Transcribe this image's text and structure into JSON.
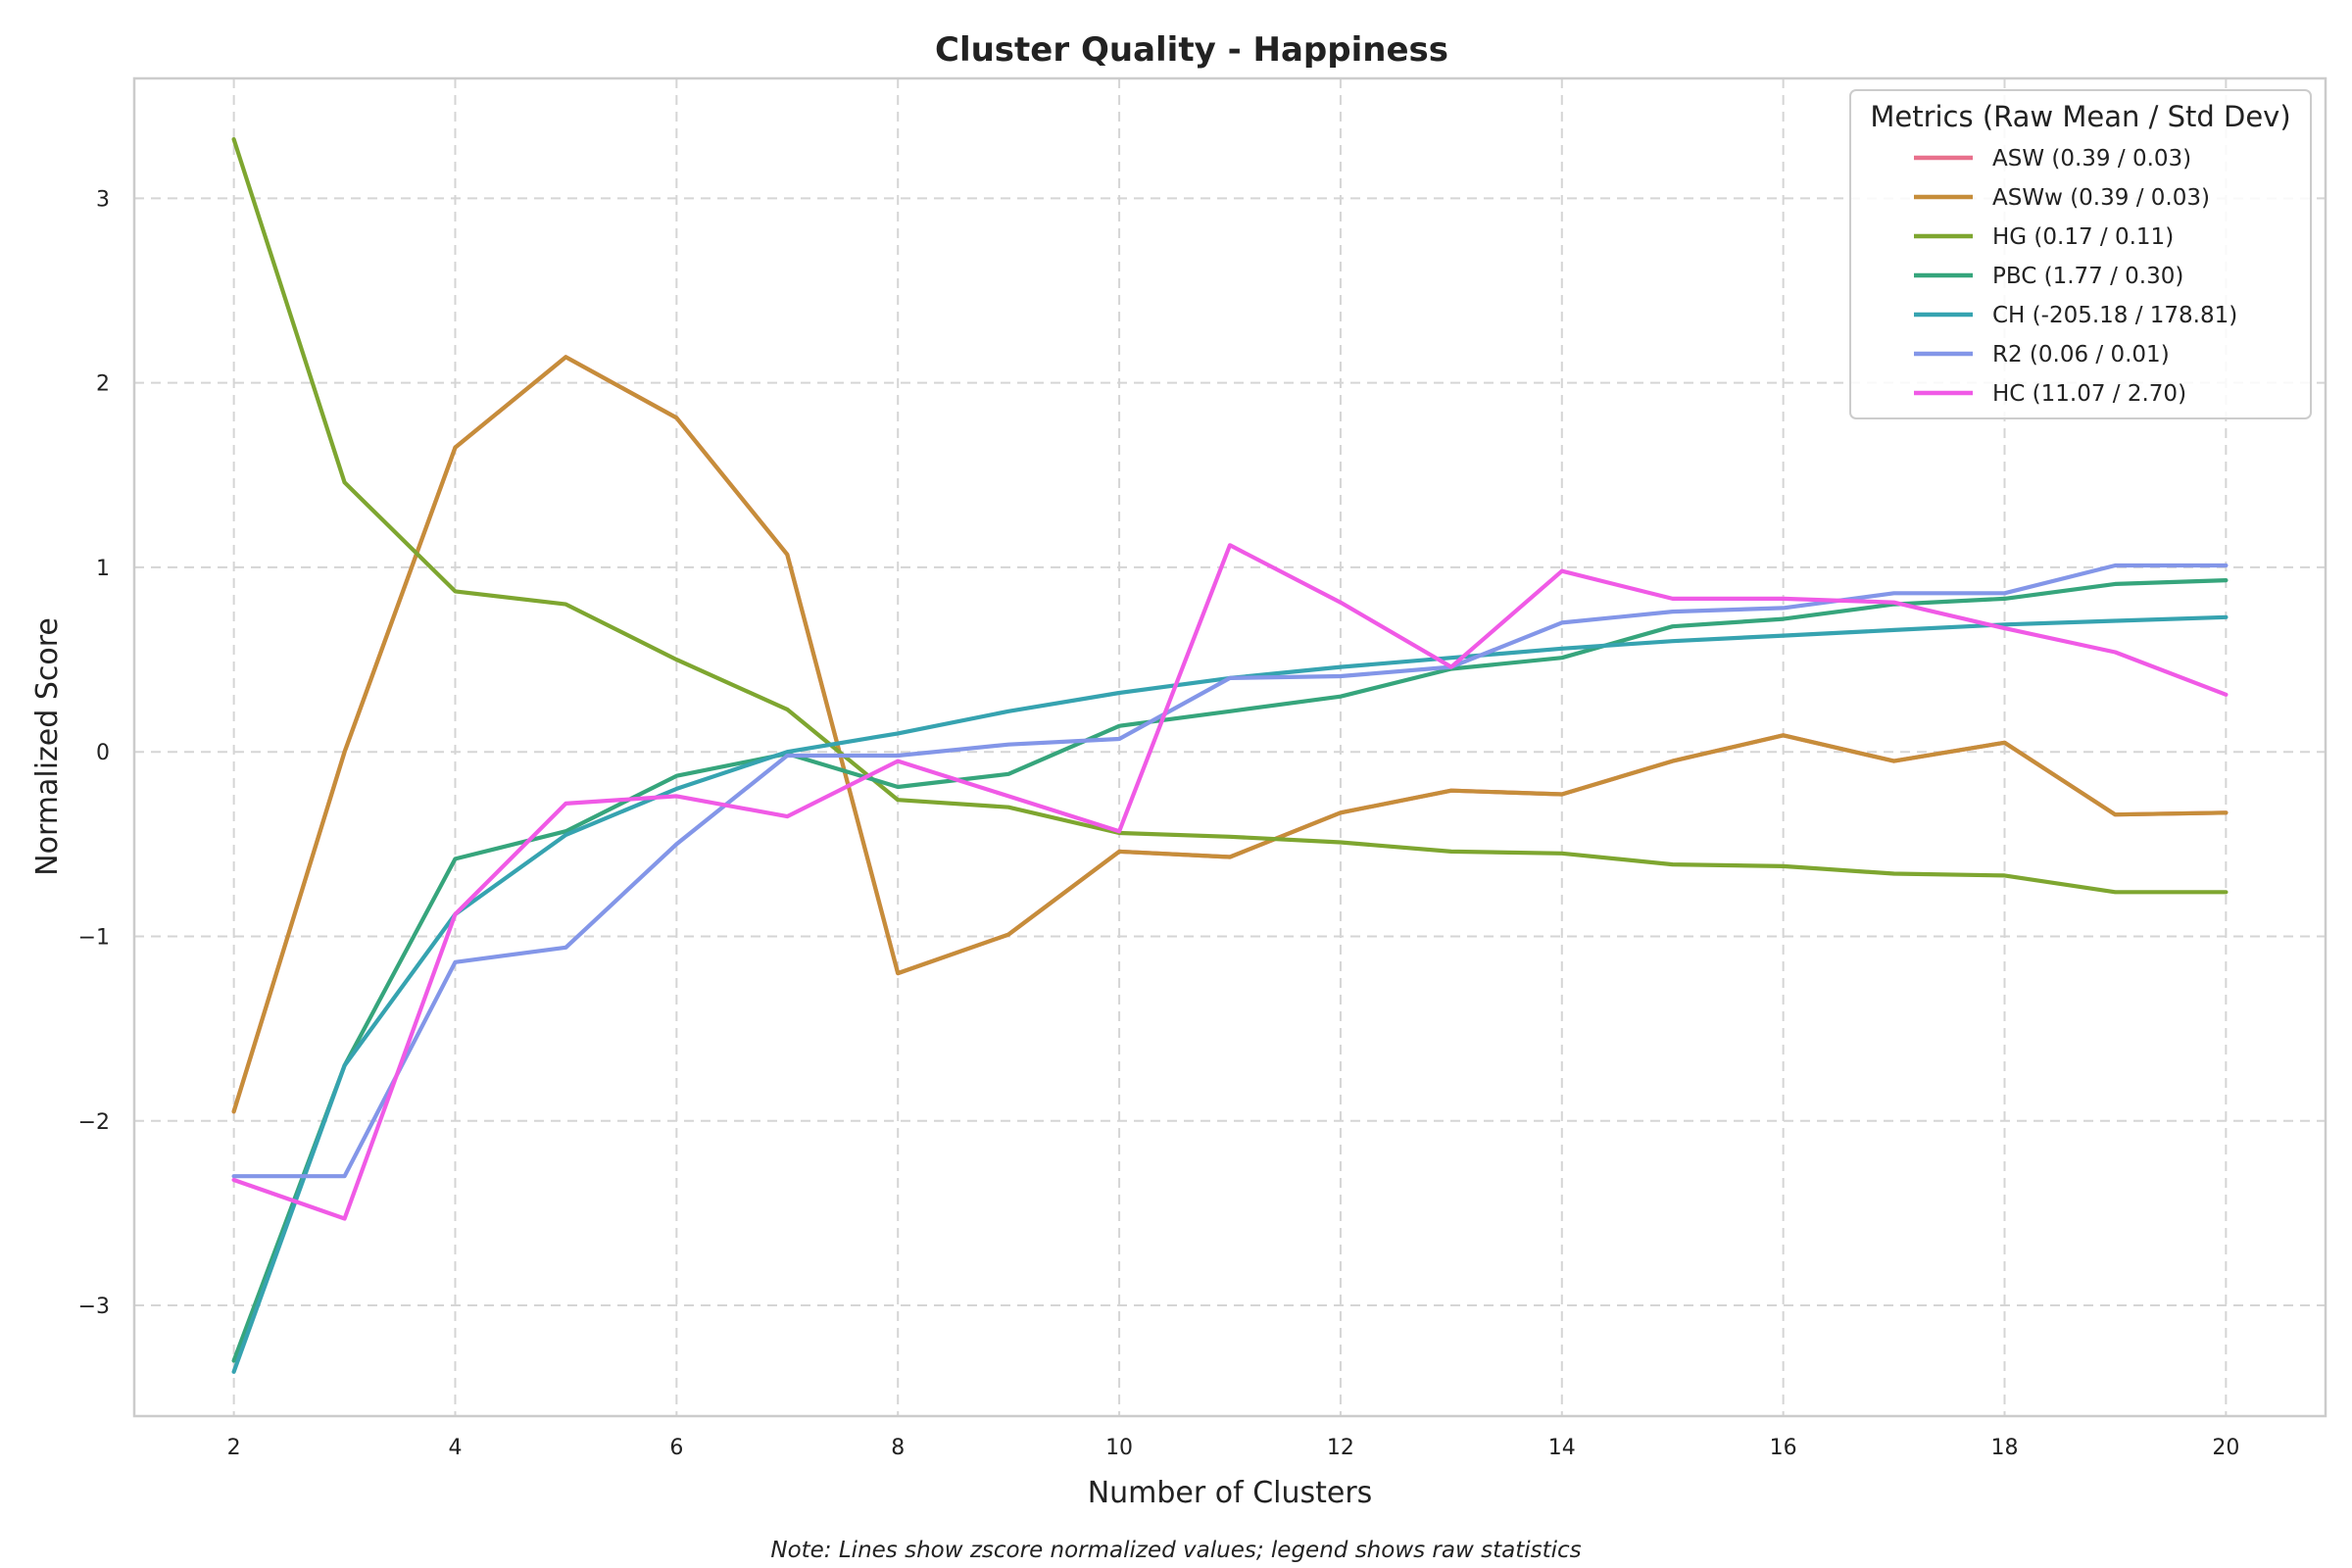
{
  "chart_data": {
    "type": "line",
    "title": "Cluster Quality - Happiness",
    "xlabel": "Number of Clusters",
    "ylabel": "Normalized Score",
    "note": "Note: Lines show zscore normalized values; legend shows raw statistics",
    "legend_title": "Metrics (Raw Mean / Std Dev)",
    "legend_position": "top-right",
    "grid": true,
    "xlim": [
      1.1,
      20.9
    ],
    "ylim": [
      -3.6,
      3.65
    ],
    "xticks": [
      2,
      4,
      6,
      8,
      10,
      12,
      14,
      16,
      18,
      20
    ],
    "xtick_labels": [
      "2",
      "4",
      "6",
      "8",
      "10",
      "12",
      "14",
      "16",
      "18",
      "20"
    ],
    "yticks": [
      -3,
      -2,
      -1,
      0,
      1,
      2,
      3
    ],
    "ytick_labels": [
      "−3",
      "−2",
      "−1",
      "0",
      "1",
      "2",
      "3"
    ],
    "x": [
      2,
      3,
      4,
      5,
      6,
      7,
      8,
      9,
      10,
      11,
      12,
      13,
      14,
      15,
      16,
      17,
      18,
      19,
      20
    ],
    "series": [
      {
        "name": "ASW (0.39 / 0.03)",
        "color": "#e8708c",
        "values": [
          -1.95,
          0.0,
          1.65,
          2.14,
          1.81,
          1.07,
          -1.2,
          -0.99,
          -0.54,
          -0.57,
          -0.33,
          -0.21,
          -0.23,
          -0.05,
          0.09,
          -0.05,
          0.05,
          -0.34,
          -0.33
        ]
      },
      {
        "name": "ASWw (0.39 / 0.03)",
        "color": "#c68d3a",
        "values": [
          -1.95,
          0.0,
          1.65,
          2.14,
          1.81,
          1.07,
          -1.2,
          -0.99,
          -0.54,
          -0.57,
          -0.33,
          -0.21,
          -0.23,
          -0.05,
          0.09,
          -0.05,
          0.05,
          -0.34,
          -0.33
        ]
      },
      {
        "name": "HG (0.17 / 0.11)",
        "color": "#7ea630",
        "values": [
          3.32,
          1.46,
          0.87,
          0.8,
          0.5,
          0.23,
          -0.26,
          -0.3,
          -0.44,
          -0.46,
          -0.49,
          -0.54,
          -0.55,
          -0.61,
          -0.62,
          -0.66,
          -0.67,
          -0.76,
          -0.76
        ]
      },
      {
        "name": "PBC (1.77 / 0.30)",
        "color": "#36a57c",
        "values": [
          -3.3,
          -1.7,
          -0.58,
          -0.43,
          -0.13,
          -0.01,
          -0.19,
          -0.12,
          0.14,
          0.22,
          0.3,
          0.45,
          0.51,
          0.68,
          0.72,
          0.8,
          0.83,
          0.91,
          0.93
        ]
      },
      {
        "name": "CH (-205.18 / 178.81)",
        "color": "#36a3b0",
        "values": [
          -3.36,
          -1.7,
          -0.88,
          -0.45,
          -0.2,
          0.0,
          0.1,
          0.22,
          0.32,
          0.4,
          0.46,
          0.51,
          0.56,
          0.6,
          0.63,
          0.66,
          0.69,
          0.71,
          0.73
        ]
      },
      {
        "name": "R2 (0.06 / 0.01)",
        "color": "#8396e8",
        "values": [
          -2.3,
          -2.3,
          -1.14,
          -1.06,
          -0.5,
          -0.02,
          -0.02,
          0.04,
          0.07,
          0.4,
          0.41,
          0.46,
          0.7,
          0.76,
          0.78,
          0.86,
          0.86,
          1.01,
          1.01
        ]
      },
      {
        "name": "HC (11.07 / 2.70)",
        "color": "#f05ae6",
        "values": [
          -2.32,
          -2.53,
          -0.88,
          -0.28,
          -0.24,
          -0.35,
          -0.05,
          -0.24,
          -0.43,
          1.12,
          0.81,
          0.46,
          0.98,
          0.83,
          0.83,
          0.81,
          0.67,
          0.54,
          0.31
        ]
      }
    ]
  }
}
